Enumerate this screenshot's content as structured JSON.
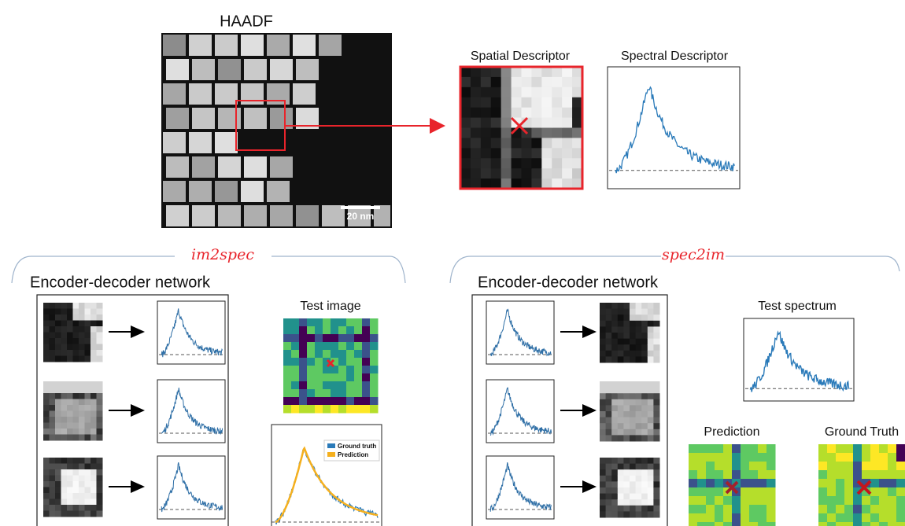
{
  "haadf": {
    "title": "HAADF",
    "scale_bar": "20 nm"
  },
  "descriptors": {
    "spatial": "Spatial Descriptor",
    "spectral": "Spectral Descriptor"
  },
  "im2spec": {
    "label": "im2spec",
    "network": "Encoder-decoder network",
    "test": "Test image",
    "legend": [
      "Ground truth",
      "Prediction"
    ]
  },
  "spec2im": {
    "label": "spec2im",
    "network": "Encoder-decoder network",
    "test": "Test spectrum",
    "panels": [
      "Prediction",
      "Ground Truth"
    ]
  }
}
